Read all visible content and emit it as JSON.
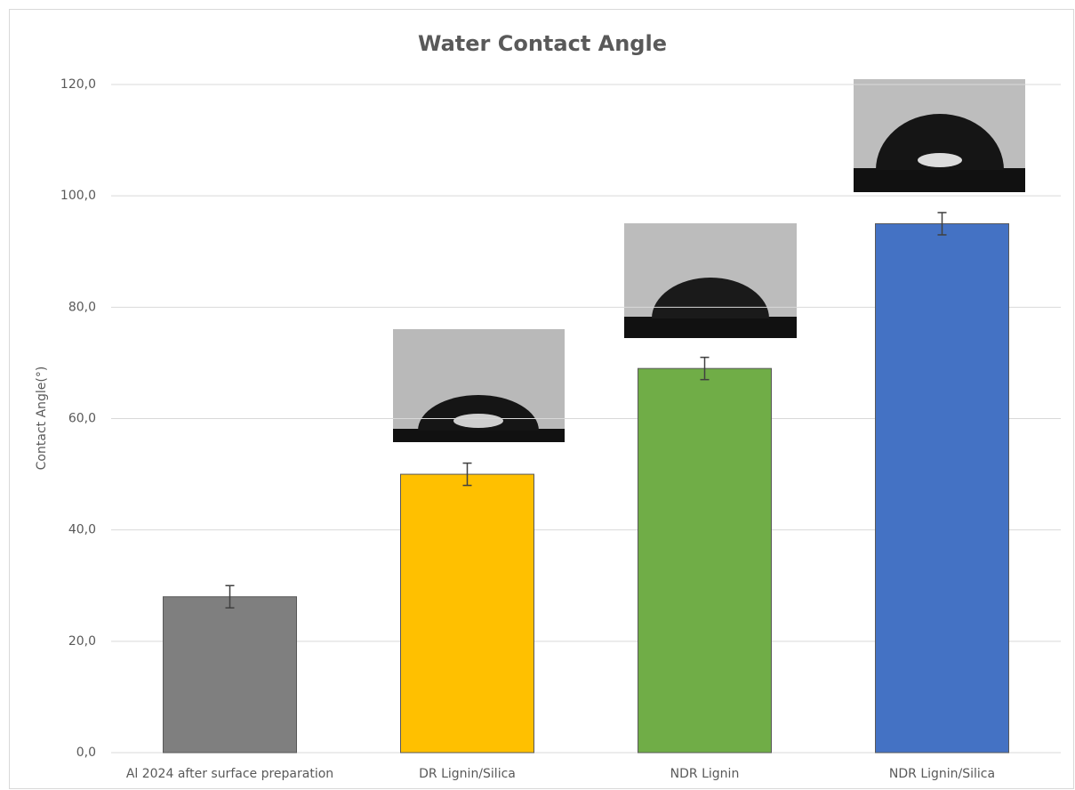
{
  "chart_data": {
    "type": "bar",
    "title": "Water Contact Angle",
    "y_label": "Contact Angle(°)",
    "categories": [
      "Al 2024 after surface preparation",
      "DR Lignin/Silica",
      "NDR Lignin",
      "NDR Lignin/Silica"
    ],
    "values": [
      28,
      50,
      69,
      95
    ],
    "errors": [
      2,
      2,
      2,
      2
    ],
    "colors": [
      "#7f7f7f",
      "#ffc000",
      "#70ad47",
      "#4472c4"
    ],
    "ylim": [
      0,
      120
    ],
    "yticks": [
      {
        "value": 0,
        "label": "0,0"
      },
      {
        "value": 20,
        "label": "20,0"
      },
      {
        "value": 40,
        "label": "40,0"
      },
      {
        "value": 60,
        "label": "60,0"
      },
      {
        "value": 80,
        "label": "80,0"
      },
      {
        "value": 100,
        "label": "100,0"
      },
      {
        "value": 120,
        "label": "120,0"
      }
    ],
    "grid": true
  }
}
